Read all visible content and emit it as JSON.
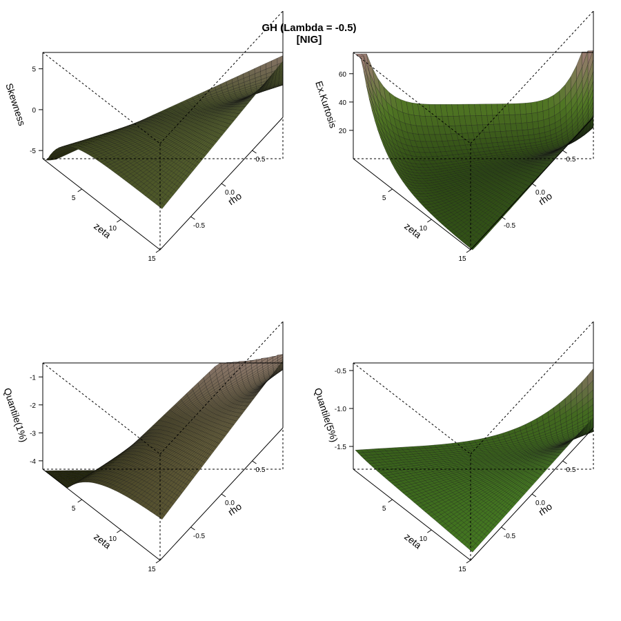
{
  "figure": {
    "title_line1": "GH (Lambda = -0.5)",
    "title_line2": "[NIG]"
  },
  "chart_data": [
    {
      "type": "surface",
      "xlabel": "rho",
      "ylabel": "zeta",
      "zlabel": "Skewness",
      "x_range": [
        -1,
        1
      ],
      "y_range": [
        0,
        15
      ],
      "z_range": [
        -6,
        7
      ],
      "x_ticks": [
        "-0.5",
        "0.0",
        "0.5"
      ],
      "y_ticks": [
        "5",
        "10",
        "15"
      ],
      "z_ticks": [
        "-5",
        "0",
        "5"
      ],
      "corner_values": {
        "z_at_rho_min_zeta_min": -6,
        "z_at_rho_max_zeta_min": 7,
        "z_at_rho_min_zeta_max": -0.8,
        "z_at_rho_max_zeta_max": 0.8
      },
      "colors": {
        "low": "#2a2d10",
        "mid": "#4f5a2b",
        "high": "#a48c7e"
      }
    },
    {
      "type": "surface",
      "xlabel": "rho",
      "ylabel": "zeta",
      "zlabel": "Ex.Kurtosis",
      "x_range": [
        -1,
        1
      ],
      "y_range": [
        0,
        15
      ],
      "z_range": [
        0,
        75
      ],
      "x_ticks": [
        "-0.5",
        "0.0",
        "0.5"
      ],
      "y_ticks": [
        "5",
        "10",
        "15"
      ],
      "z_ticks": [
        "20",
        "40",
        "60"
      ],
      "corner_values": {
        "z_at_rho_min_zeta_min": 72,
        "z_at_rho_max_zeta_min": 72,
        "z_at_rho_min_zeta_max": 0.3,
        "z_at_rho_max_zeta_max": 0.3
      },
      "colors": {
        "low": "#2d4a14",
        "mid": "#5e8a2a",
        "high": "#b9928a"
      }
    },
    {
      "type": "surface",
      "xlabel": "rho",
      "ylabel": "zeta",
      "zlabel": "Quantile(1%)",
      "x_range": [
        -1,
        1
      ],
      "y_range": [
        0,
        15
      ],
      "z_range": [
        -4.3,
        -0.5
      ],
      "x_ticks": [
        "-0.5",
        "0.0",
        "0.5"
      ],
      "y_ticks": [
        "5",
        "10",
        "15"
      ],
      "z_ticks": [
        "-4",
        "-3",
        "-2",
        "-1"
      ],
      "corner_values": {
        "z_at_rho_min_zeta_min": -4.2,
        "z_at_rho_max_zeta_min": -0.5,
        "z_at_rho_min_zeta_max": -2.6,
        "z_at_rho_max_zeta_max": -2.0
      },
      "colors": {
        "low": "#2a2d10",
        "mid": "#5a5434",
        "high": "#a48c7e"
      }
    },
    {
      "type": "surface",
      "xlabel": "rho",
      "ylabel": "zeta",
      "zlabel": "Quantile(5%)",
      "x_range": [
        -1,
        1
      ],
      "y_range": [
        0,
        15
      ],
      "z_range": [
        -1.8,
        -0.4
      ],
      "x_ticks": [
        "-0.5",
        "0.0",
        "0.5"
      ],
      "y_ticks": [
        "5",
        "10",
        "15"
      ],
      "z_ticks": [
        "-1.5",
        "-1.0",
        "-0.5"
      ],
      "corner_values": {
        "z_at_rho_min_zeta_min": -1.5,
        "z_at_rho_max_zeta_min": -0.4,
        "z_at_rho_min_zeta_max": -1.7,
        "z_at_rho_max_zeta_max": -1.6
      },
      "colors": {
        "low": "#3a6a1c",
        "mid": "#4e7a25",
        "high": "#a88a80"
      }
    }
  ]
}
